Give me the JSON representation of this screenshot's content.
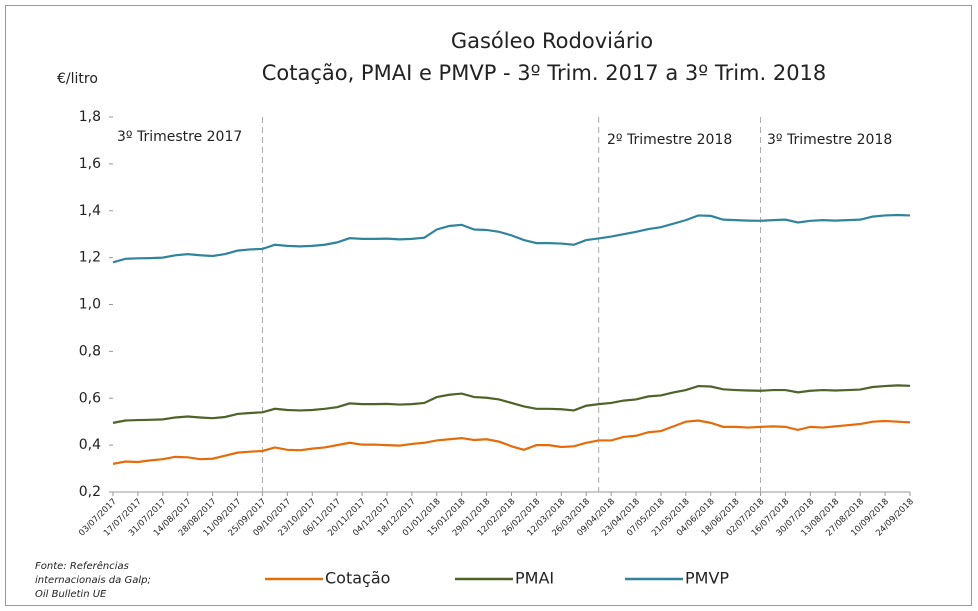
{
  "chart_data": {
    "type": "line",
    "title": [
      "Gasóleo Rodoviário",
      "Cotação, PMAI e PMVP - 3º Trim. 2017 a 3º Trim. 2018"
    ],
    "ylabel": "€/litro",
    "annotations": [
      "3º Trimestre 2017",
      "2º Trimestre 2018",
      "3º Trimestre 2018"
    ],
    "source": [
      "Fonte: Referências",
      "internacionais da Galp;",
      "Oil Bulletin UE"
    ],
    "categories": [
      "03/07/2017",
      null,
      "17/07/2017",
      null,
      "31/07/2017",
      null,
      "14/08/2017",
      null,
      "28/08/2017",
      null,
      "11/09/2017",
      null,
      "25/09/2017",
      null,
      "09/10/2017",
      null,
      "23/10/2017",
      null,
      "06/11/2017",
      null,
      "20/11/2017",
      null,
      "04/12/2017",
      null,
      "18/12/2017",
      null,
      "01/01/2018",
      null,
      "15/01/2018",
      null,
      "29/01/2018",
      null,
      "12/02/2018",
      null,
      "26/02/2018",
      null,
      "12/03/2018",
      null,
      "26/03/2018",
      null,
      "09/04/2018",
      null,
      "23/04/2018",
      null,
      "07/05/2018",
      null,
      "21/05/2018",
      null,
      "04/06/2018",
      null,
      "18/06/2018",
      null,
      "02/07/2018",
      null,
      "16/07/2018",
      null,
      "30/07/2018",
      null,
      "13/08/2018",
      null,
      "27/08/2018",
      null,
      "10/09/2018",
      null,
      "24/09/2018"
    ],
    "series": [
      {
        "name": "Cotação",
        "color": "#e46c0a",
        "values": [
          0.32,
          0.33,
          0.328,
          0.335,
          0.34,
          0.35,
          0.348,
          0.34,
          0.342,
          0.355,
          0.368,
          0.372,
          0.375,
          0.39,
          0.38,
          0.378,
          0.385,
          0.39,
          0.4,
          0.41,
          0.402,
          0.402,
          0.4,
          0.398,
          0.405,
          0.41,
          0.42,
          0.425,
          0.43,
          0.422,
          0.425,
          0.415,
          0.395,
          0.38,
          0.4,
          0.4,
          0.392,
          0.395,
          0.41,
          0.42,
          0.42,
          0.435,
          0.44,
          0.455,
          0.46,
          0.48,
          0.5,
          0.505,
          0.495,
          0.478,
          0.478,
          0.475,
          0.478,
          0.48,
          0.478,
          0.465,
          0.478,
          0.475,
          0.48,
          0.485,
          0.49,
          0.5,
          0.503,
          0.5,
          0.497
        ]
      },
      {
        "name": "PMAI",
        "color": "#4f6228",
        "values": [
          0.495,
          0.505,
          0.507,
          0.508,
          0.51,
          0.518,
          0.522,
          0.518,
          0.515,
          0.52,
          0.533,
          0.537,
          0.54,
          0.555,
          0.55,
          0.548,
          0.55,
          0.555,
          0.562,
          0.578,
          0.575,
          0.575,
          0.576,
          0.573,
          0.575,
          0.58,
          0.605,
          0.615,
          0.62,
          0.605,
          0.602,
          0.595,
          0.58,
          0.565,
          0.555,
          0.555,
          0.553,
          0.548,
          0.568,
          0.575,
          0.58,
          0.59,
          0.595,
          0.608,
          0.612,
          0.625,
          0.635,
          0.652,
          0.65,
          0.638,
          0.635,
          0.633,
          0.632,
          0.635,
          0.635,
          0.625,
          0.632,
          0.635,
          0.633,
          0.635,
          0.637,
          0.648,
          0.652,
          0.655,
          0.653
        ]
      },
      {
        "name": "PMVP",
        "color": "#31849b",
        "values": [
          1.18,
          1.195,
          1.197,
          1.198,
          1.2,
          1.21,
          1.215,
          1.21,
          1.207,
          1.215,
          1.23,
          1.235,
          1.237,
          1.255,
          1.25,
          1.248,
          1.25,
          1.255,
          1.265,
          1.283,
          1.28,
          1.28,
          1.281,
          1.278,
          1.28,
          1.285,
          1.32,
          1.335,
          1.34,
          1.32,
          1.318,
          1.31,
          1.295,
          1.275,
          1.262,
          1.262,
          1.26,
          1.255,
          1.275,
          1.282,
          1.29,
          1.3,
          1.31,
          1.322,
          1.33,
          1.345,
          1.36,
          1.38,
          1.378,
          1.362,
          1.36,
          1.358,
          1.357,
          1.36,
          1.362,
          1.35,
          1.357,
          1.36,
          1.358,
          1.36,
          1.362,
          1.375,
          1.38,
          1.382,
          1.38
        ]
      }
    ],
    "ylim": [
      0.2,
      1.8
    ],
    "yticks": [
      {
        "value": 0.2,
        "label": "0,2"
      },
      {
        "value": 0.4,
        "label": "0,4"
      },
      {
        "value": 0.6,
        "label": "0,6"
      },
      {
        "value": 0.8,
        "label": "0,8"
      },
      {
        "value": 1.0,
        "label": "1,0"
      },
      {
        "value": 1.2,
        "label": "1,2"
      },
      {
        "value": 1.4,
        "label": "1,4"
      },
      {
        "value": 1.6,
        "label": "1,6"
      },
      {
        "value": 1.8,
        "label": "1,8"
      }
    ],
    "grid": false
  }
}
